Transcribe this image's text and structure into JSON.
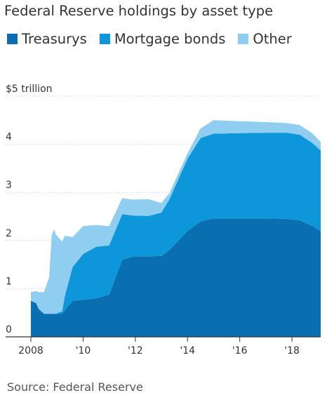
{
  "chart_data": {
    "type": "area",
    "title": "Federal Reserve holdings by asset type",
    "source": "Source: Federal Reserve",
    "ylabel": "",
    "xlabel": "",
    "y_tick_labels": [
      "0",
      "1",
      "2",
      "3",
      "4",
      "$5 trillion"
    ],
    "y_ticks": [
      0,
      1,
      2,
      3,
      4,
      5
    ],
    "ylim": [
      0,
      5
    ],
    "x_tick_labels": [
      "2008",
      "'10",
      "'12",
      "'14",
      "'16",
      "'18"
    ],
    "x_ticks": [
      2008,
      2010,
      2012,
      2014,
      2016,
      2018
    ],
    "xlim": [
      2008,
      2019.1
    ],
    "grid": "horizontal",
    "legend_position": "top-left",
    "stacked": true,
    "x": [
      2008.0,
      2008.2,
      2008.3,
      2008.5,
      2008.7,
      2008.8,
      2008.9,
      2008.95,
      2009.2,
      2009.3,
      2009.6,
      2010.0,
      2010.5,
      2011.0,
      2011.5,
      2011.9,
      2012.5,
      2013.0,
      2013.3,
      2014.0,
      2014.5,
      2015.0,
      2016.0,
      2017.0,
      2017.8,
      2018.3,
      2018.8,
      2019.1
    ],
    "series": [
      {
        "name": "Treasurys",
        "color": "#0a6fb0",
        "values": [
          0.75,
          0.7,
          0.58,
          0.48,
          0.48,
          0.48,
          0.48,
          0.48,
          0.48,
          0.55,
          0.75,
          0.77,
          0.8,
          0.88,
          1.6,
          1.67,
          1.67,
          1.68,
          1.8,
          2.2,
          2.4,
          2.46,
          2.46,
          2.46,
          2.45,
          2.42,
          2.3,
          2.2
        ]
      },
      {
        "name": "Mortgage bonds",
        "color": "#0d96da",
        "values": [
          0,
          0,
          0,
          0,
          0,
          0,
          0,
          0,
          0.05,
          0.3,
          0.7,
          0.95,
          1.07,
          1.02,
          0.95,
          0.85,
          0.84,
          0.9,
          1.05,
          1.5,
          1.73,
          1.76,
          1.77,
          1.78,
          1.79,
          1.78,
          1.72,
          1.67
        ]
      },
      {
        "name": "Other",
        "color": "#8fcdf1",
        "values": [
          0.18,
          0.25,
          0.35,
          0.45,
          0.75,
          1.65,
          1.75,
          1.65,
          1.45,
          1.25,
          0.62,
          0.58,
          0.45,
          0.4,
          0.33,
          0.33,
          0.35,
          0.2,
          0.13,
          0.11,
          0.2,
          0.28,
          0.25,
          0.22,
          0.2,
          0.2,
          0.2,
          0.18
        ]
      }
    ]
  }
}
